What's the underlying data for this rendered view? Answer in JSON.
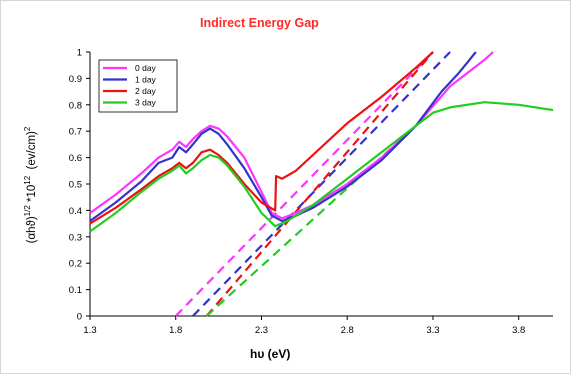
{
  "chart_data": {
    "type": "line",
    "title": "Indirect Energy Gap",
    "xlabel": "hυ (eV)",
    "ylabel": "(αhϑ)^1/2 *10^12 (ev/cm)^2",
    "ylabel_parts": {
      "base": "(αhϑ)",
      "sup1": "1/2",
      "mid": " *10",
      "sup2": "12",
      "unit": "  (ev/cm)",
      "sup3": "2"
    },
    "xlim": [
      1.3,
      4.0
    ],
    "ylim": [
      0,
      1
    ],
    "x_ticks": [
      "1.3",
      "1.8",
      "2.3",
      "2.8",
      "3.3",
      "3.8"
    ],
    "x_tick_values": [
      1.3,
      1.8,
      2.3,
      2.8,
      3.3,
      3.8
    ],
    "y_ticks": [
      "0",
      "0.1",
      "0.2",
      "0.3",
      "0.4",
      "0.5",
      "0.6",
      "0.7",
      "0.8",
      "0.9",
      "1"
    ],
    "y_tick_values": [
      0,
      0.1,
      0.2,
      0.3,
      0.4,
      0.5,
      0.6,
      0.7,
      0.8,
      0.9,
      1
    ],
    "grid": false,
    "legend_position": "top-left",
    "series": [
      {
        "name": "0 day",
        "color": "#ff33ff",
        "points": [
          [
            1.3,
            0.39
          ],
          [
            1.45,
            0.46
          ],
          [
            1.6,
            0.54
          ],
          [
            1.7,
            0.6
          ],
          [
            1.78,
            0.63
          ],
          [
            1.82,
            0.66
          ],
          [
            1.86,
            0.64
          ],
          [
            1.9,
            0.67
          ],
          [
            1.95,
            0.7
          ],
          [
            2.0,
            0.72
          ],
          [
            2.05,
            0.71
          ],
          [
            2.1,
            0.68
          ],
          [
            2.2,
            0.6
          ],
          [
            2.3,
            0.47
          ],
          [
            2.36,
            0.39
          ],
          [
            2.42,
            0.37
          ],
          [
            2.5,
            0.39
          ],
          [
            2.6,
            0.42
          ],
          [
            2.8,
            0.5
          ],
          [
            3.0,
            0.6
          ],
          [
            3.2,
            0.72
          ],
          [
            3.4,
            0.87
          ],
          [
            3.6,
            0.97
          ],
          [
            3.65,
            1.0
          ]
        ]
      },
      {
        "name": "1 day",
        "color": "#3333cc",
        "points": [
          [
            1.3,
            0.36
          ],
          [
            1.45,
            0.43
          ],
          [
            1.6,
            0.51
          ],
          [
            1.7,
            0.58
          ],
          [
            1.78,
            0.6
          ],
          [
            1.82,
            0.64
          ],
          [
            1.86,
            0.62
          ],
          [
            1.9,
            0.65
          ],
          [
            1.95,
            0.69
          ],
          [
            2.0,
            0.71
          ],
          [
            2.05,
            0.69
          ],
          [
            2.1,
            0.65
          ],
          [
            2.2,
            0.56
          ],
          [
            2.3,
            0.45
          ],
          [
            2.36,
            0.38
          ],
          [
            2.42,
            0.36
          ],
          [
            2.5,
            0.38
          ],
          [
            2.6,
            0.41
          ],
          [
            2.8,
            0.49
          ],
          [
            3.0,
            0.59
          ],
          [
            3.2,
            0.72
          ],
          [
            3.35,
            0.85
          ],
          [
            3.45,
            0.92
          ],
          [
            3.5,
            0.96
          ],
          [
            3.55,
            1.0
          ]
        ]
      },
      {
        "name": "2 day",
        "color": "#ee1111",
        "points": [
          [
            1.3,
            0.35
          ],
          [
            1.45,
            0.41
          ],
          [
            1.6,
            0.48
          ],
          [
            1.7,
            0.53
          ],
          [
            1.78,
            0.56
          ],
          [
            1.82,
            0.58
          ],
          [
            1.86,
            0.56
          ],
          [
            1.9,
            0.58
          ],
          [
            1.95,
            0.62
          ],
          [
            2.0,
            0.63
          ],
          [
            2.05,
            0.61
          ],
          [
            2.1,
            0.58
          ],
          [
            2.2,
            0.5
          ],
          [
            2.3,
            0.43
          ],
          [
            2.38,
            0.4
          ],
          [
            2.385,
            0.53
          ],
          [
            2.42,
            0.52
          ],
          [
            2.5,
            0.55
          ],
          [
            2.6,
            0.61
          ],
          [
            2.8,
            0.73
          ],
          [
            3.0,
            0.83
          ],
          [
            3.2,
            0.94
          ],
          [
            3.3,
            1.0
          ]
        ]
      },
      {
        "name": "3 day",
        "color": "#22cc22",
        "points": [
          [
            1.3,
            0.32
          ],
          [
            1.45,
            0.39
          ],
          [
            1.6,
            0.47
          ],
          [
            1.7,
            0.52
          ],
          [
            1.78,
            0.55
          ],
          [
            1.82,
            0.57
          ],
          [
            1.86,
            0.54
          ],
          [
            1.9,
            0.56
          ],
          [
            1.95,
            0.59
          ],
          [
            2.0,
            0.61
          ],
          [
            2.05,
            0.6
          ],
          [
            2.1,
            0.57
          ],
          [
            2.2,
            0.49
          ],
          [
            2.3,
            0.39
          ],
          [
            2.38,
            0.34
          ],
          [
            2.45,
            0.36
          ],
          [
            2.6,
            0.42
          ],
          [
            2.8,
            0.52
          ],
          [
            3.0,
            0.62
          ],
          [
            3.2,
            0.72
          ],
          [
            3.3,
            0.77
          ],
          [
            3.4,
            0.79
          ],
          [
            3.6,
            0.81
          ],
          [
            3.8,
            0.8
          ],
          [
            4.0,
            0.78
          ]
        ]
      }
    ],
    "fit_lines": [
      {
        "color": "#ff33ff",
        "from": [
          1.8,
          0.0
        ],
        "to": [
          3.3,
          1.0
        ]
      },
      {
        "color": "#3333cc",
        "from": [
          1.9,
          0.0
        ],
        "to": [
          3.4,
          1.0
        ]
      },
      {
        "color": "#ee1111",
        "from": [
          1.98,
          0.0
        ],
        "to": [
          3.3,
          1.0
        ]
      },
      {
        "color": "#22cc22",
        "from": [
          1.98,
          0.0
        ],
        "to": [
          3.2,
          0.72
        ]
      }
    ]
  }
}
